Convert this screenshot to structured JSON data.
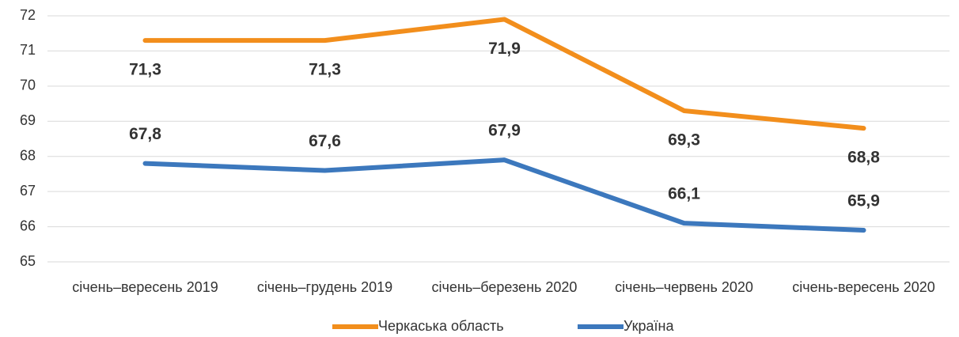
{
  "chart_data": {
    "type": "line",
    "categories": [
      "січень–вересень  2019",
      "січень–грудень 2019",
      "січень–березень 2020",
      "січень–червень 2020",
      "січень-вересень 2020"
    ],
    "series": [
      {
        "name": "Черкаська область",
        "color": "#f28e1c",
        "label_color": "#8a4a16",
        "values": [
          71.3,
          71.3,
          71.9,
          69.3,
          68.8
        ],
        "value_labels": [
          "71,3",
          "71,3",
          "71,9",
          "69,3",
          "68,8"
        ]
      },
      {
        "name": "Україна",
        "color": "#3c78bd",
        "label_color": "#2b4d72",
        "values": [
          67.8,
          67.6,
          67.9,
          66.1,
          65.9
        ],
        "value_labels": [
          "67,8",
          "67,6",
          "67,9",
          "66,1",
          "65,9"
        ]
      }
    ],
    "ylim": [
      65,
      72
    ],
    "yticks": [
      65,
      66,
      67,
      68,
      69,
      70,
      71,
      72
    ],
    "grid": true,
    "legend": "bottom"
  }
}
